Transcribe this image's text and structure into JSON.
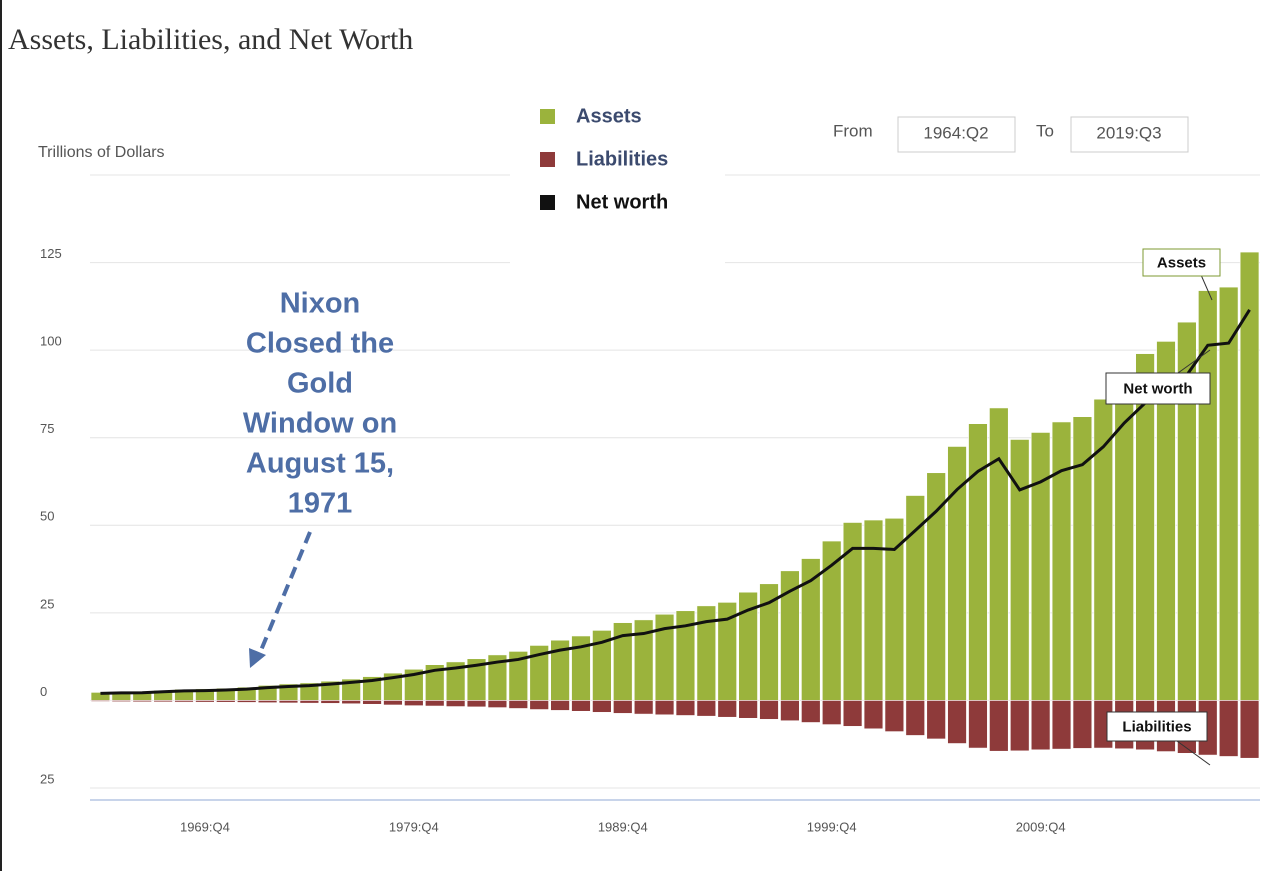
{
  "chart_data": {
    "type": "bar_line",
    "title": "Assets, Liabilities, and Net Worth",
    "y_label": "Trillions of Dollars",
    "range_from_label": "From",
    "range_from": "1964:Q2",
    "range_to_label": "To",
    "range_to": "2019:Q3",
    "annotation": [
      "Nixon",
      "Closed the",
      "Gold",
      "Window on",
      "August 15,",
      "1971"
    ],
    "callouts": [
      "Assets",
      "Net worth",
      "Liabilities"
    ],
    "categories": [
      null,
      null,
      null,
      null,
      null,
      "1969:Q4",
      null,
      null,
      null,
      null,
      null,
      null,
      null,
      null,
      null,
      "1979:Q4",
      null,
      null,
      null,
      null,
      null,
      null,
      null,
      null,
      null,
      "1989:Q4",
      null,
      null,
      null,
      null,
      null,
      null,
      null,
      null,
      null,
      "1999:Q4",
      null,
      null,
      null,
      null,
      null,
      null,
      null,
      null,
      null,
      "2009:Q4",
      null,
      null,
      null,
      null,
      null,
      null,
      null,
      null,
      null,
      null
    ],
    "series": [
      {
        "name": "Assets",
        "color": "#9bb33c",
        "kind": "bar",
        "values": [
          2.3,
          2.5,
          2.6,
          2.9,
          3.2,
          3.3,
          3.5,
          3.8,
          4.3,
          4.7,
          5.0,
          5.5,
          6.1,
          6.8,
          7.8,
          8.9,
          10.2,
          11.0,
          11.9,
          13.0,
          14.0,
          15.7,
          17.2,
          18.4,
          20.0,
          22.2,
          23.0,
          24.6,
          25.6,
          27.0,
          28.0,
          30.9,
          33.3,
          37.0,
          40.5,
          45.5,
          50.8,
          51.5,
          52.0,
          58.5,
          65.0,
          72.5,
          79.0,
          83.5,
          74.5,
          76.5,
          79.5,
          81.0,
          86.0,
          93.0,
          99.0,
          102.5,
          108.0,
          117.0,
          118.0,
          128.0
        ]
      },
      {
        "name": "Liabilities",
        "color": "#8e3a3a",
        "kind": "bar",
        "values": [
          -0.3,
          -0.35,
          -0.4,
          -0.42,
          -0.47,
          -0.5,
          -0.52,
          -0.57,
          -0.65,
          -0.72,
          -0.78,
          -0.84,
          -0.95,
          -1.1,
          -1.3,
          -1.5,
          -1.6,
          -1.75,
          -1.85,
          -2.05,
          -2.3,
          -2.6,
          -2.85,
          -3.1,
          -3.4,
          -3.7,
          -3.9,
          -4.1,
          -4.3,
          -4.5,
          -4.8,
          -5.1,
          -5.4,
          -5.8,
          -6.3,
          -6.9,
          -7.4,
          -8.1,
          -8.9,
          -10.0,
          -11.0,
          -12.3,
          -13.6,
          -14.5,
          -14.4,
          -14.1,
          -13.9,
          -13.7,
          -13.6,
          -13.8,
          -14.1,
          -14.6,
          -15.1,
          -15.6,
          -16.0,
          -16.5
        ]
      },
      {
        "name": "Net worth",
        "color": "#111111",
        "kind": "line",
        "values": [
          2.0,
          2.15,
          2.2,
          2.48,
          2.73,
          2.8,
          2.98,
          3.23,
          3.65,
          3.98,
          4.22,
          4.66,
          5.15,
          5.7,
          6.5,
          7.4,
          8.6,
          9.25,
          10.05,
          10.95,
          11.7,
          13.1,
          14.35,
          15.3,
          16.6,
          18.5,
          19.1,
          20.5,
          21.3,
          22.5,
          23.2,
          25.8,
          27.9,
          31.2,
          34.2,
          38.6,
          43.4,
          43.4,
          43.1,
          48.5,
          54.0,
          60.2,
          65.4,
          69.0,
          60.1,
          62.4,
          65.6,
          67.3,
          72.4,
          79.2,
          84.9,
          87.9,
          92.9,
          101.4,
          102.0,
          111.5
        ]
      }
    ],
    "ylim": [
      -25,
      150
    ],
    "yticks": [
      {
        "value": -25,
        "label": "25"
      },
      0,
      25,
      50,
      75,
      100,
      125
    ],
    "grid": true
  }
}
